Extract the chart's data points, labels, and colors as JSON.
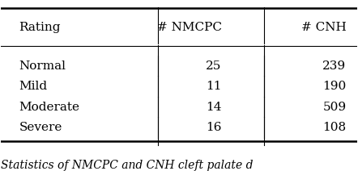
{
  "col_headers": [
    "Rating",
    "# NMCPC",
    "# CNH"
  ],
  "rows": [
    [
      "Normal",
      "25",
      "239"
    ],
    [
      "Mild",
      "11",
      "190"
    ],
    [
      "Moderate",
      "14",
      "509"
    ],
    [
      "Severe",
      "16",
      "108"
    ]
  ],
  "caption": "Statistics of NMCPC and CNH cleft palate d",
  "background_color": "#ffffff",
  "text_color": "#000000",
  "font_size": 11,
  "caption_font_size": 10
}
